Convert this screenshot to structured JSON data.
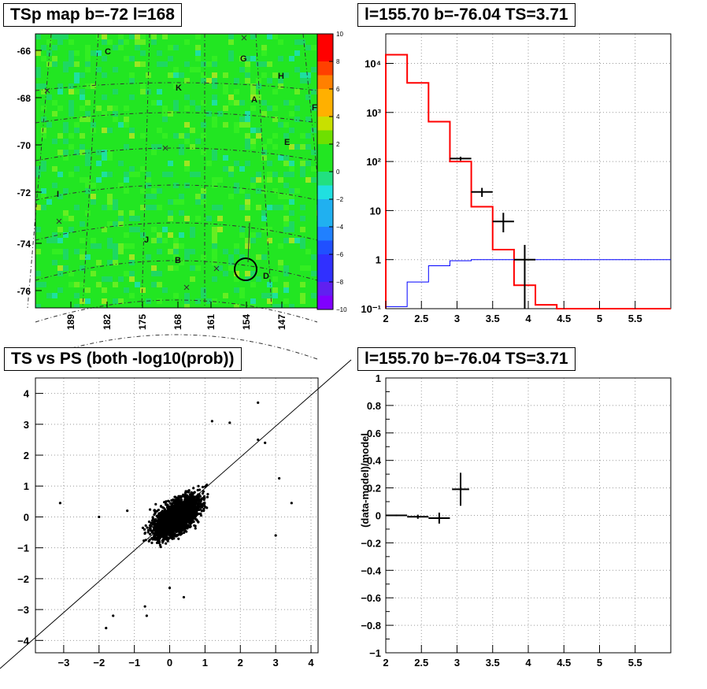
{
  "panels": {
    "map": {
      "title": "TSp map b=-72 l=168",
      "yticks": [
        "-66",
        "-68",
        "-70",
        "-72",
        "-74",
        "-76"
      ],
      "xticks": [
        "189",
        "182",
        "175",
        "168",
        "161",
        "154",
        "147"
      ],
      "colorbar_ticks": [
        "10",
        "8",
        "6",
        "4",
        "2",
        "0",
        "−2",
        "−4",
        "−6",
        "−8",
        "−10"
      ],
      "source_labels": [
        "C",
        "G",
        "H",
        "K",
        "A",
        "F",
        "E",
        "I",
        "J",
        "B",
        "D"
      ]
    },
    "spectrum": {
      "title": "l=155.70 b=-76.04 TS=3.71",
      "xticks": [
        "2",
        "2.5",
        "3",
        "3.5",
        "4",
        "4.5",
        "5",
        "5.5"
      ],
      "yticks": [
        "10⁻¹",
        "1",
        "10",
        "10²",
        "10³",
        "10⁴"
      ]
    },
    "scatter": {
      "title": "TS vs PS (both -log10(prob))",
      "xticks": [
        "−3",
        "−2",
        "−1",
        "0",
        "1",
        "2",
        "3",
        "4"
      ],
      "yticks": [
        "4",
        "3",
        "2",
        "1",
        "0",
        "−1",
        "−2",
        "−3",
        "−4"
      ]
    },
    "residual": {
      "title": "l=155.70 b=-76.04 TS=3.71",
      "xticks": [
        "2",
        "2.5",
        "3",
        "3.5",
        "4",
        "4.5",
        "5",
        "5.5"
      ],
      "yticks": [
        "1",
        "0.8",
        "0.6",
        "0.4",
        "0.2",
        "0",
        "−0.2",
        "−0.4",
        "−0.6",
        "−0.8",
        "−1"
      ],
      "ylabel": "(data-model)/model"
    }
  },
  "colors": {
    "model": "#ff0000",
    "background_model": "#0000ff",
    "data": "#000000"
  },
  "chart_data": [
    {
      "type": "heatmap",
      "title": "TSp map b=-72 l=168",
      "ylim": [
        -76.5,
        -65.5
      ],
      "xlim": [
        196,
        140
      ],
      "zlim": [
        -10,
        10
      ],
      "marked_source": {
        "l": 154,
        "b": -75.2
      }
    },
    {
      "type": "line",
      "title": "l=155.70 b=-76.04 TS=3.71",
      "xlim": [
        2,
        6
      ],
      "ylim": [
        0.1,
        40000
      ],
      "log_y": true,
      "series": [
        {
          "style": "step",
          "color": "#ff0000",
          "edges": [
            2.0,
            2.3,
            2.6,
            2.9,
            3.2,
            3.5,
            3.8,
            4.1,
            4.4,
            6.0
          ],
          "values": [
            15000,
            4000,
            650,
            100,
            12,
            1.6,
            0.3,
            0.12,
            0.1
          ]
        },
        {
          "style": "step",
          "color": "#0000ff",
          "edges": [
            2.0,
            2.3,
            2.6,
            2.9,
            3.2,
            6.0
          ],
          "values": [
            0.11,
            0.35,
            0.75,
            0.95,
            1.0
          ]
        },
        {
          "style": "errorbar",
          "color": "#000000",
          "points": [
            {
              "x": 3.05,
              "y": 115,
              "xerr": 0.15,
              "ylo": 105,
              "yhi": 125
            },
            {
              "x": 3.35,
              "y": 24,
              "xerr": 0.15,
              "ylo": 19,
              "yhi": 29
            },
            {
              "x": 3.65,
              "y": 6,
              "xerr": 0.15,
              "ylo": 3.6,
              "yhi": 9
            },
            {
              "x": 3.95,
              "y": 1,
              "xerr": 0.15,
              "ylo": 0.1,
              "yhi": 2
            }
          ]
        }
      ],
      "grid": true
    },
    {
      "type": "scatter",
      "title": "TS vs PS (both -log10(prob))",
      "xlim": [
        -3.8,
        4.2
      ],
      "ylim": [
        -4.4,
        4.5
      ],
      "grid": true,
      "diagonal": [
        [
          -3.8,
          -3.8
        ],
        [
          4.2,
          4.2
        ]
      ],
      "cluster": {
        "center": [
          0.2,
          0.0
        ],
        "sigma_x": 0.45,
        "sigma_y": 0.45,
        "correlation": 0.6,
        "approx_points": 8000
      },
      "outliers": [
        [
          -3.1,
          0.45
        ],
        [
          3.45,
          0.45
        ],
        [
          -2.0,
          0.0
        ],
        [
          -1.8,
          -3.6
        ],
        [
          -1.6,
          -3.2
        ],
        [
          -0.65,
          -3.2
        ],
        [
          -0.7,
          -2.9
        ],
        [
          2.5,
          3.7
        ],
        [
          1.2,
          3.1
        ],
        [
          1.7,
          3.05
        ],
        [
          3.1,
          1.25
        ],
        [
          2.7,
          2.4
        ],
        [
          2.5,
          2.5
        ],
        [
          -1.2,
          0.2
        ],
        [
          3.0,
          -0.6
        ],
        [
          0.4,
          -2.6
        ],
        [
          0.0,
          -2.3
        ]
      ]
    },
    {
      "type": "line",
      "title": "l=155.70 b=-76.04 TS=3.71",
      "xlabel": "",
      "ylabel": "(data-model)/model",
      "xlim": [
        2,
        6
      ],
      "ylim": [
        -1,
        1
      ],
      "grid": true,
      "points": [
        {
          "x": 2.15,
          "y": 0.0,
          "xerr": 0.15,
          "yerr": 0.006
        },
        {
          "x": 2.45,
          "y": -0.01,
          "xerr": 0.15,
          "yerr": 0.015
        },
        {
          "x": 2.75,
          "y": -0.02,
          "xerr": 0.15,
          "yerr": 0.04
        },
        {
          "x": 3.05,
          "y": 0.19,
          "xerr": 0.12,
          "yerr": 0.12
        }
      ]
    }
  ]
}
